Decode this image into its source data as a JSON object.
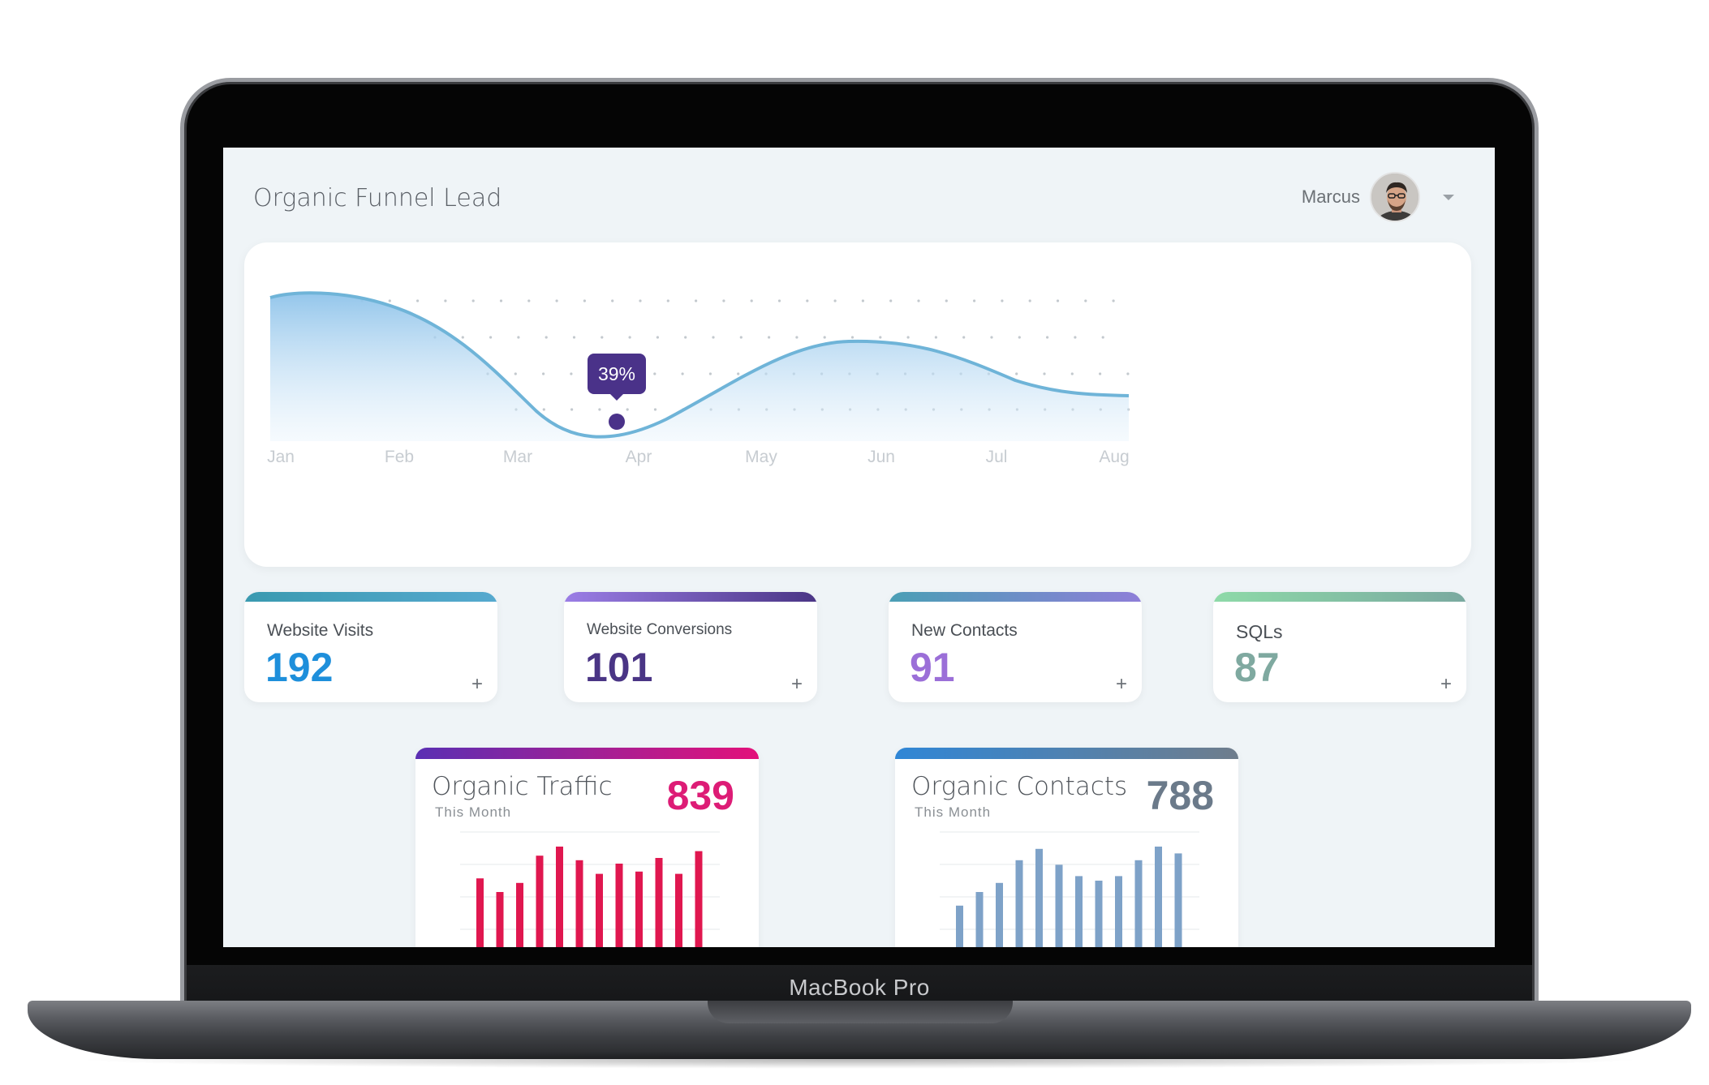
{
  "device": {
    "label": "MacBook Pro"
  },
  "header": {
    "title": "Organic Funnel Lead",
    "user": {
      "name": "Marcus"
    }
  },
  "chart_data": {
    "type": "area",
    "categories": [
      "Jan",
      "Feb",
      "Mar",
      "Apr",
      "May",
      "Jun",
      "Jul",
      "Aug"
    ],
    "highlight": {
      "category": "Apr",
      "label": "39%"
    }
  },
  "stats": [
    {
      "label": "Website Visits",
      "value": "192",
      "color": "#1e8fdb",
      "bar": [
        "#3a9ab0",
        "#56a9cf"
      ]
    },
    {
      "label": "Website Conversions",
      "value": "101",
      "color": "#4a3585",
      "bar": [
        "#9b7ee6",
        "#4a3585"
      ]
    },
    {
      "label": "New Contacts",
      "value": "91",
      "color": "#9b6fd8",
      "bar": [
        "#4a9fb5",
        "#8e7ed8"
      ]
    },
    {
      "label": "SQLs",
      "value": "87",
      "color": "#7fa9a0",
      "bar": [
        "#8edaa8",
        "#7aa9a0"
      ]
    }
  ],
  "mini_charts": [
    {
      "title": "Organic Traffic",
      "subtitle": "This Month",
      "value": "839",
      "value_color": "#dd1c76",
      "bar_gradient": [
        "#5a2fb3",
        "#e3117a"
      ],
      "series_color": "#e0174f",
      "values": [
        72,
        60,
        68,
        92,
        100,
        88,
        76,
        85,
        78,
        90,
        76,
        96
      ]
    },
    {
      "title": "Organic Contacts",
      "subtitle": "This Month",
      "value": "788",
      "value_color": "#6b7a8a",
      "bar_gradient": [
        "#2f86d6",
        "#6f7d8c"
      ],
      "series_color": "#7ea2c8",
      "values": [
        48,
        60,
        68,
        88,
        98,
        84,
        74,
        70,
        74,
        88,
        100,
        94
      ]
    }
  ]
}
